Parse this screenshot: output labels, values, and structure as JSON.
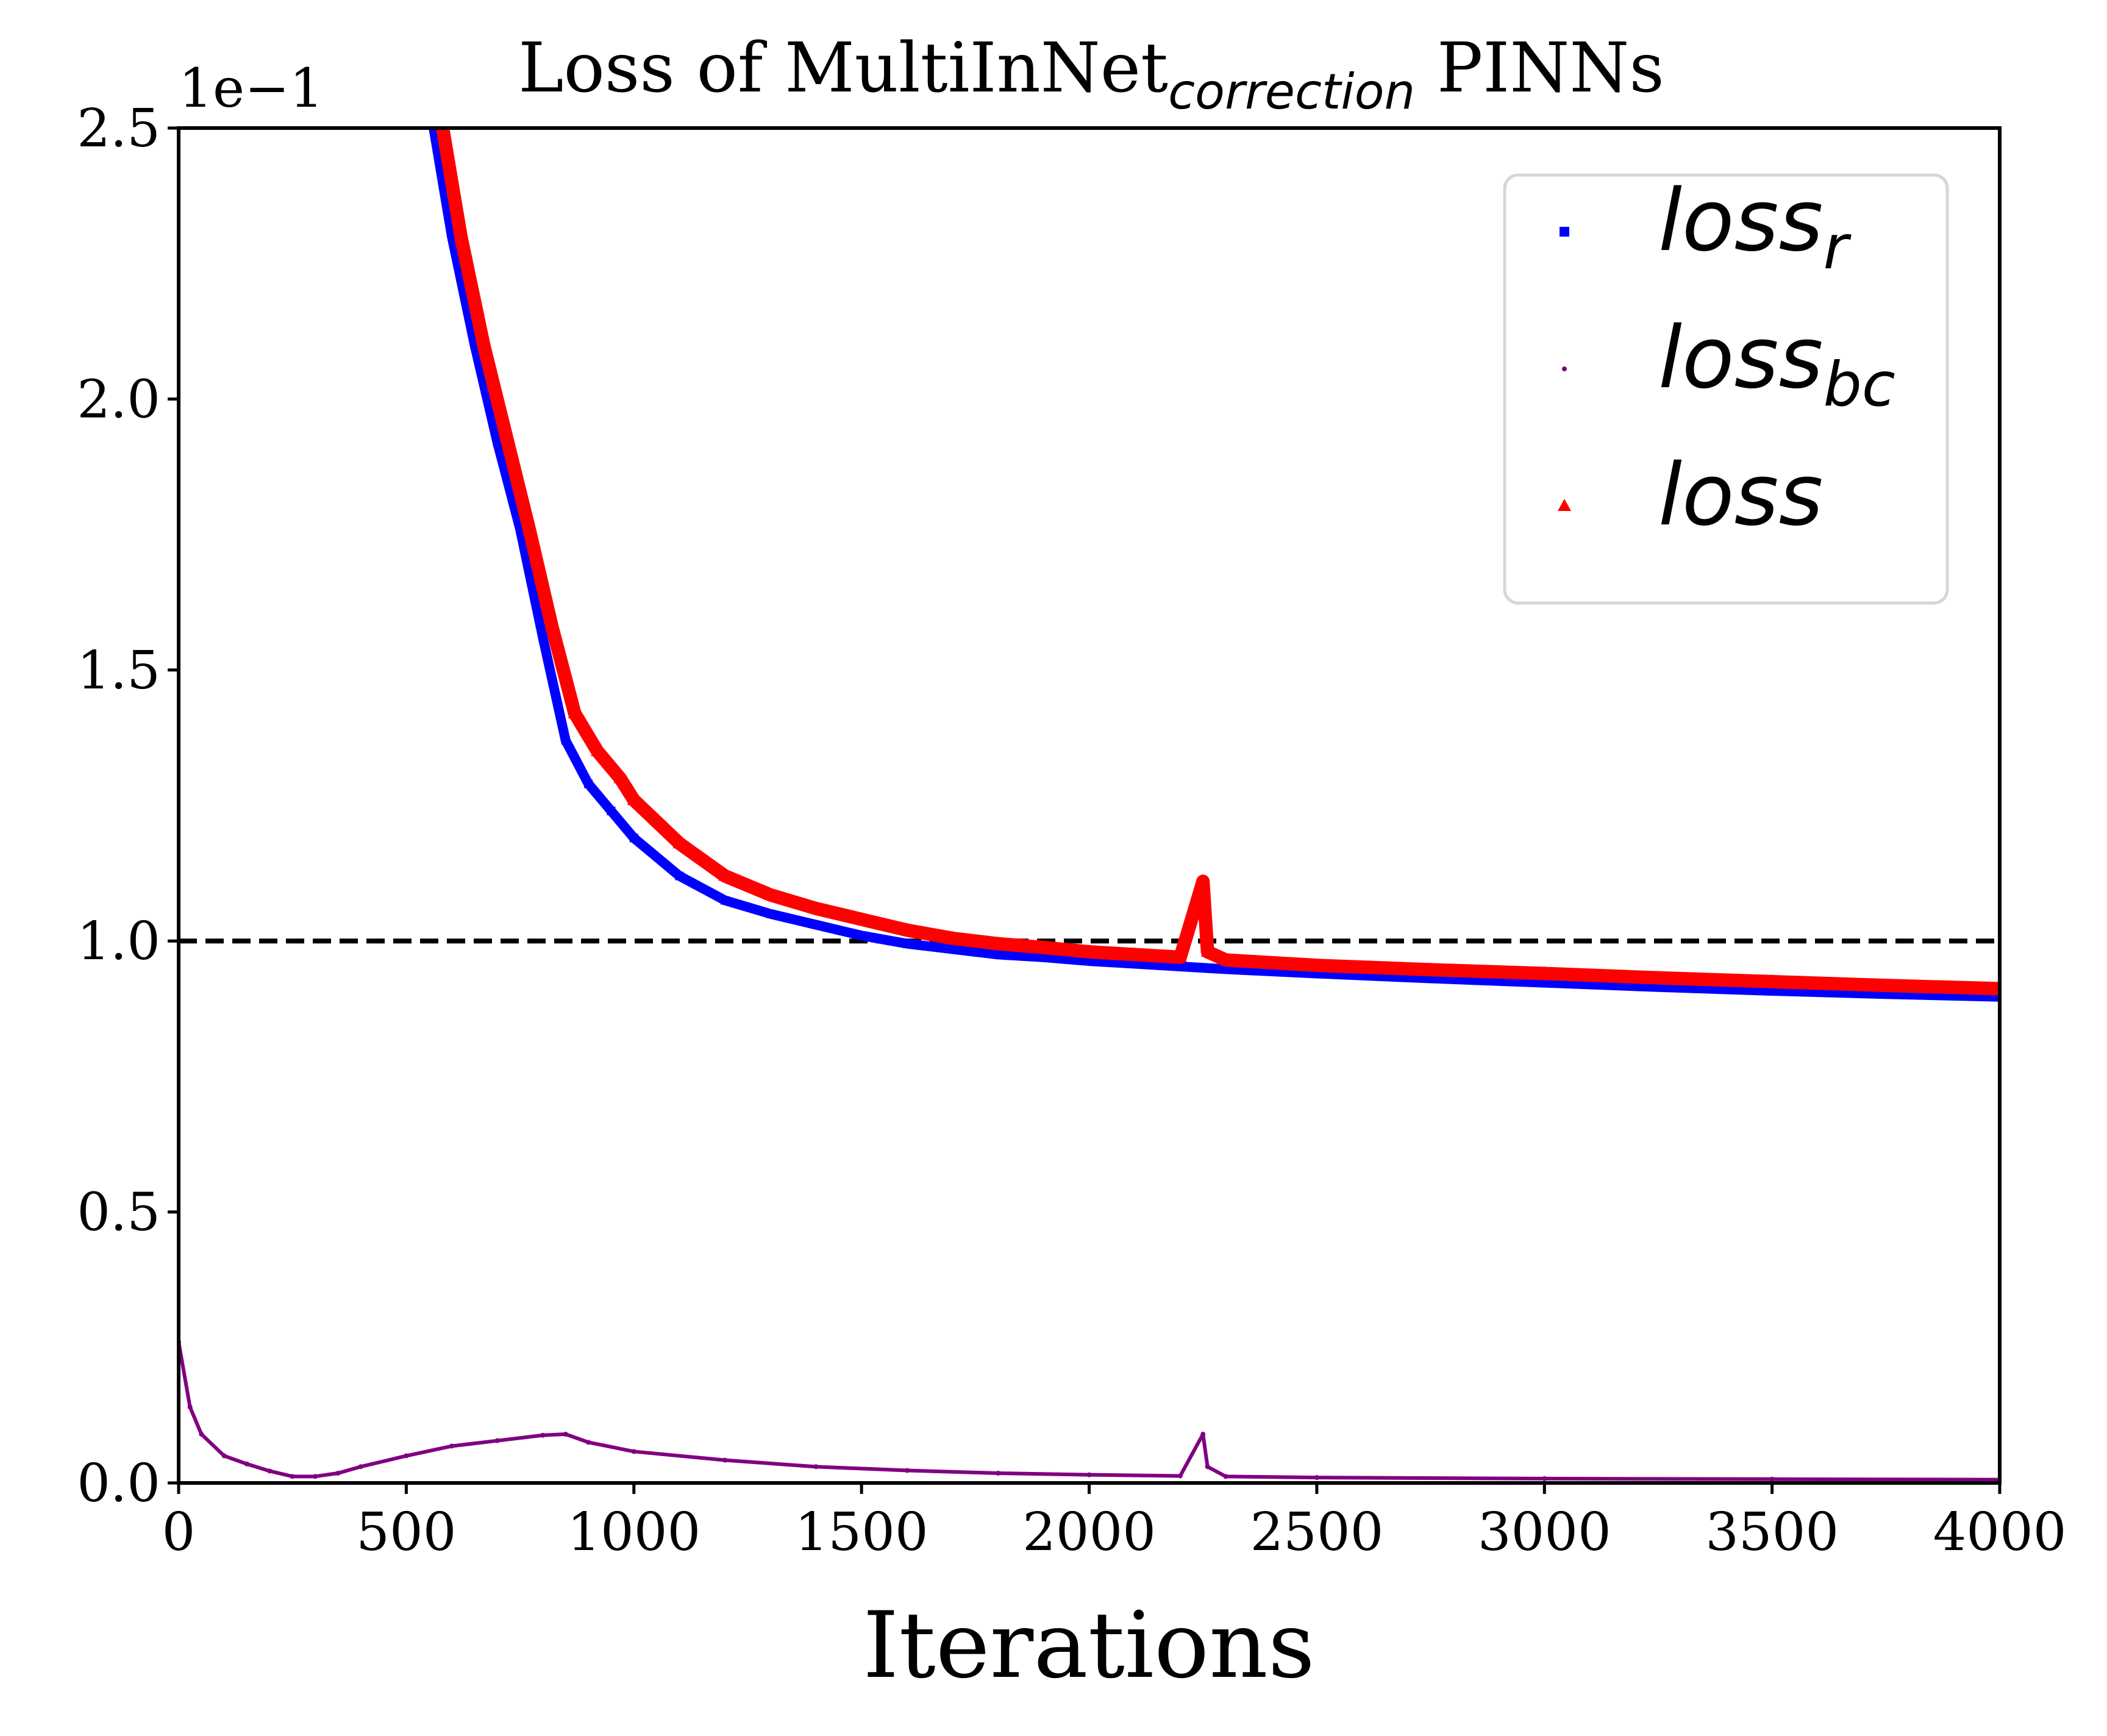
{
  "chart_data": {
    "type": "scatter",
    "title_prefix": "Loss of MultiInNet",
    "title_subscript": "correction",
    "title_suffix": " PINNs",
    "xlabel": "Iterations",
    "ylabel": "",
    "offset_text": "1e−1",
    "xlim": [
      0,
      4000
    ],
    "ylim": [
      0,
      2.5
    ],
    "xticks": [
      0,
      500,
      1000,
      1500,
      2000,
      2500,
      3000,
      3500,
      4000
    ],
    "xtick_labels": [
      "0",
      "500",
      "1000",
      "1500",
      "2000",
      "2500",
      "3000",
      "3500",
      "4000"
    ],
    "yticks": [
      0,
      0.5,
      1.0,
      1.5,
      2.0,
      2.5
    ],
    "ytick_labels": [
      "0.0",
      "0.5",
      "1.0",
      "1.5",
      "2.0",
      "2.5"
    ],
    "grid": false,
    "legend_position": "top-right",
    "reference_line": {
      "y": 1.0,
      "style": "dashed",
      "color": "#000000"
    },
    "series": [
      {
        "name_base": "loss",
        "name_sub": "r",
        "color": "#0000ff",
        "marker": "square",
        "x": [
          560,
          600,
          650,
          700,
          750,
          800,
          850,
          900,
          950,
          1000,
          1100,
          1200,
          1300,
          1400,
          1500,
          1600,
          1700,
          1800,
          1900,
          2000,
          2100,
          2200,
          2300,
          2500,
          2750,
          3000,
          3250,
          3500,
          3750,
          4000
        ],
        "y": [
          2.5,
          2.3,
          2.1,
          1.92,
          1.76,
          1.56,
          1.37,
          1.29,
          1.24,
          1.19,
          1.12,
          1.075,
          1.05,
          1.03,
          1.01,
          0.995,
          0.985,
          0.975,
          0.97,
          0.963,
          0.958,
          0.953,
          0.948,
          0.94,
          0.931,
          0.923,
          0.915,
          0.908,
          0.902,
          0.897
        ]
      },
      {
        "name_base": "loss",
        "name_sub": "bc",
        "color": "#800080",
        "marker": "point",
        "x": [
          0,
          25,
          50,
          100,
          150,
          200,
          250,
          300,
          350,
          400,
          500,
          600,
          700,
          800,
          850,
          900,
          1000,
          1200,
          1400,
          1600,
          1800,
          2000,
          2200,
          2250,
          2260,
          2300,
          2500,
          3000,
          3500,
          4000
        ],
        "y": [
          0.26,
          0.14,
          0.09,
          0.05,
          0.035,
          0.022,
          0.012,
          0.012,
          0.018,
          0.03,
          0.05,
          0.068,
          0.078,
          0.088,
          0.09,
          0.075,
          0.058,
          0.042,
          0.03,
          0.023,
          0.018,
          0.015,
          0.013,
          0.09,
          0.03,
          0.012,
          0.01,
          0.008,
          0.007,
          0.006
        ]
      },
      {
        "name_base": "loss",
        "name_sub": "",
        "color": "#ff0000",
        "marker": "triangle",
        "x": [
          580,
          620,
          670,
          720,
          770,
          820,
          870,
          920,
          970,
          1000,
          1100,
          1200,
          1300,
          1400,
          1500,
          1600,
          1700,
          1800,
          1900,
          2000,
          2100,
          2200,
          2250,
          2260,
          2300,
          2500,
          2750,
          3000,
          3250,
          3500,
          3750,
          4000
        ],
        "y": [
          2.5,
          2.3,
          2.1,
          1.93,
          1.76,
          1.58,
          1.42,
          1.35,
          1.3,
          1.26,
          1.18,
          1.12,
          1.085,
          1.06,
          1.04,
          1.02,
          1.005,
          0.995,
          0.988,
          0.98,
          0.975,
          0.97,
          1.11,
          0.98,
          0.965,
          0.955,
          0.947,
          0.94,
          0.932,
          0.925,
          0.918,
          0.912
        ]
      }
    ]
  }
}
